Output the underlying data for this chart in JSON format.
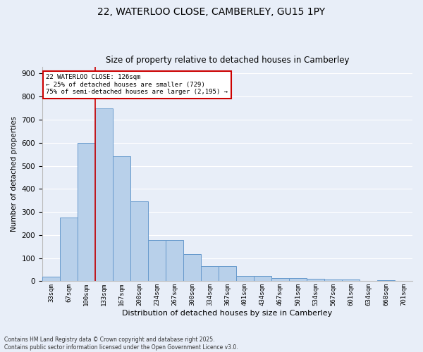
{
  "title_line1": "22, WATERLOO CLOSE, CAMBERLEY, GU15 1PY",
  "title_line2": "Size of property relative to detached houses in Camberley",
  "xlabel": "Distribution of detached houses by size in Camberley",
  "ylabel": "Number of detached properties",
  "categories": [
    "33sqm",
    "67sqm",
    "100sqm",
    "133sqm",
    "167sqm",
    "200sqm",
    "234sqm",
    "267sqm",
    "300sqm",
    "334sqm",
    "367sqm",
    "401sqm",
    "434sqm",
    "467sqm",
    "501sqm",
    "534sqm",
    "567sqm",
    "601sqm",
    "634sqm",
    "668sqm",
    "701sqm"
  ],
  "values": [
    20,
    275,
    600,
    750,
    540,
    345,
    178,
    178,
    118,
    65,
    65,
    22,
    22,
    12,
    12,
    10,
    8,
    8,
    0,
    5,
    0
  ],
  "bar_color": "#b8d0ea",
  "bar_edge_color": "#6699cc",
  "bar_width": 1.0,
  "vline_x_index": 3,
  "vline_color": "#cc0000",
  "annotation_line1": "22 WATERLOO CLOSE: 126sqm",
  "annotation_line2": "← 25% of detached houses are smaller (729)",
  "annotation_line3": "75% of semi-detached houses are larger (2,195) →",
  "annotation_box_color": "white",
  "annotation_box_edge": "#cc0000",
  "ylim": [
    0,
    930
  ],
  "yticks": [
    0,
    100,
    200,
    300,
    400,
    500,
    600,
    700,
    800,
    900
  ],
  "background_color": "#e8eef8",
  "grid_color": "#ffffff",
  "footer_line1": "Contains HM Land Registry data © Crown copyright and database right 2025.",
  "footer_line2": "Contains public sector information licensed under the Open Government Licence v3.0."
}
